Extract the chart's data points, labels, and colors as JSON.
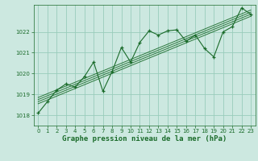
{
  "title": "Graphe pression niveau de la mer (hPa)",
  "bg_color": "#cce8e0",
  "grid_color": "#99ccbb",
  "line_color": "#1a6b2a",
  "marker_color": "#1a6b2a",
  "xlim": [
    -0.5,
    23.5
  ],
  "ylim": [
    1017.5,
    1023.3
  ],
  "yticks": [
    1018,
    1019,
    1020,
    1021,
    1022
  ],
  "xticks": [
    0,
    1,
    2,
    3,
    4,
    5,
    6,
    7,
    8,
    9,
    10,
    11,
    12,
    13,
    14,
    15,
    16,
    17,
    18,
    19,
    20,
    21,
    22,
    23
  ],
  "pressure_data": [
    1018.1,
    1018.65,
    1019.2,
    1019.5,
    1019.35,
    1019.85,
    1020.55,
    1019.15,
    1020.1,
    1021.25,
    1020.55,
    1021.5,
    1022.05,
    1021.85,
    1022.05,
    1022.1,
    1021.55,
    1021.85,
    1021.2,
    1020.8,
    1022.0,
    1022.25,
    1023.15,
    1022.85
  ],
  "trend_lines": [
    {
      "x0": 0,
      "y0": 1018.55,
      "x1": 23,
      "y1": 1022.75
    },
    {
      "x0": 0,
      "y0": 1018.65,
      "x1": 23,
      "y1": 1022.85
    },
    {
      "x0": 0,
      "y0": 1018.75,
      "x1": 23,
      "y1": 1022.95
    },
    {
      "x0": 0,
      "y0": 1018.85,
      "x1": 23,
      "y1": 1023.05
    }
  ],
  "font_color": "#1a6b2a",
  "title_fontsize": 6.5,
  "tick_fontsize": 5.0,
  "figsize": [
    3.2,
    2.0
  ],
  "dpi": 100
}
